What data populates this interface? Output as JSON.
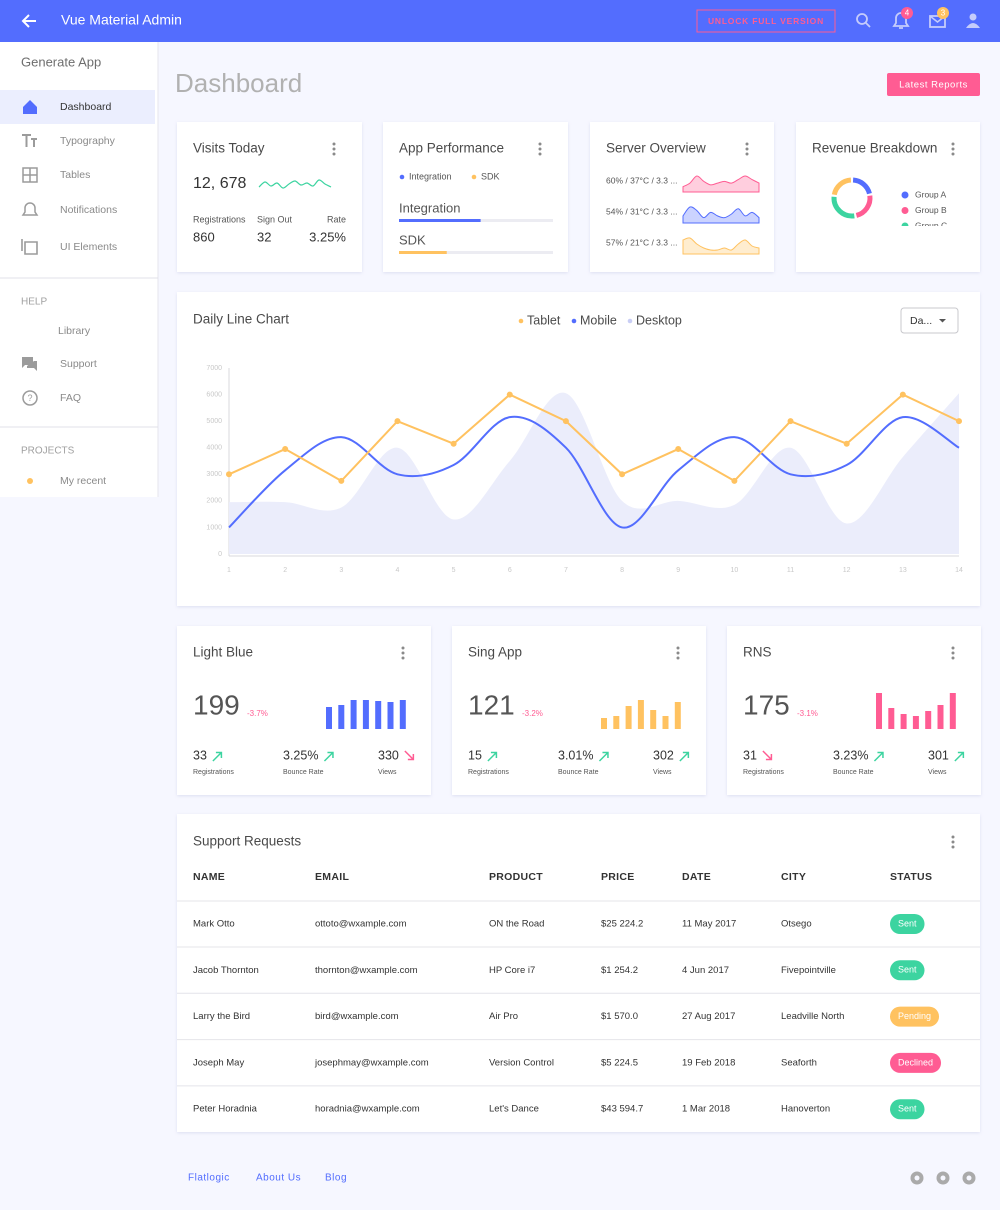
{
  "header": {
    "title": "Vue Material Admin",
    "unlock": "UNLOCK FULL VERSION",
    "notifications": 4,
    "messages": 3
  },
  "sidebar": {
    "title": "Generate App",
    "items": [
      "Dashboard",
      "Typography",
      "Tables",
      "Notifications",
      "UI Elements"
    ],
    "help_title": "HELP",
    "help_items": [
      "Library",
      "Support",
      "FAQ"
    ],
    "projects_title": "PROJECTS",
    "projects_items": [
      "My recent"
    ]
  },
  "page": {
    "title": "Dashboard",
    "button": "Latest Reports"
  },
  "visits": {
    "title": "Visits Today",
    "total": "12, 678",
    "color": "#3cd4a0",
    "trend": [
      3.6,
      4.1,
      3.7,
      4.0,
      3.5,
      3.9,
      4.2,
      3.8,
      4.0,
      3.7,
      4.3,
      3.9,
      3.6
    ],
    "stats": [
      {
        "label": "Registrations",
        "value": "860"
      },
      {
        "label": "Sign Out",
        "value": "32"
      },
      {
        "label": "Rate",
        "value": "3.25%"
      }
    ]
  },
  "app_performance": {
    "title": "App Performance",
    "xlim": [
      0,
      100
    ],
    "bars": [
      {
        "name": "Integration",
        "color": "#536dfe",
        "value": 53
      },
      {
        "name": "SDK",
        "color": "#ffc260",
        "value": 31
      }
    ]
  },
  "server_overview": {
    "title": "Server Overview",
    "rows": [
      {
        "label": "60% / 37°C / 3.3 ...",
        "color": "#ff5c93",
        "values": [
          3,
          5,
          9,
          6,
          4,
          5,
          6,
          5,
          7,
          9,
          7,
          5
        ]
      },
      {
        "label": "54% / 31°C / 3.3 ...",
        "color": "#536dfe",
        "values": [
          4,
          9,
          7,
          3,
          6,
          4,
          3,
          5,
          8,
          4,
          6,
          3
        ]
      },
      {
        "label": "57% / 21°C / 3.3 ...",
        "color": "#ffc260",
        "values": [
          7,
          8,
          5,
          3,
          2,
          2,
          3,
          2,
          5,
          7,
          4,
          3
        ]
      }
    ]
  },
  "revenue": {
    "title": "Revenue Breakdown",
    "names": [
      "Group A",
      "Group B",
      "Group C",
      null
    ],
    "values": [
      22,
      25,
      30,
      23
    ],
    "colors": [
      "#536dfe",
      "#ff5c93",
      "#3cd4a0",
      "#ffc260"
    ]
  },
  "chart_data": {
    "type": "line",
    "title": "Daily Line Chart",
    "dropdown": "Da...",
    "x": [
      1,
      2,
      3,
      4,
      5,
      6,
      7,
      8,
      9,
      10,
      11,
      12,
      13,
      14
    ],
    "xlim": [
      1,
      14
    ],
    "xticks": [
      1,
      2,
      3,
      4,
      5,
      6,
      7,
      8,
      9,
      10,
      11,
      12,
      13,
      14
    ],
    "ylim": [
      0,
      7000
    ],
    "yticks": [
      0,
      1000,
      2000,
      3000,
      4000,
      5000,
      6000,
      7000
    ],
    "series": [
      {
        "name": "Tablet",
        "color": "#ffc260",
        "values": [
          3000,
          3950,
          2750,
          5000,
          4150,
          6000,
          5000,
          3000,
          3950,
          2750,
          5000,
          4150,
          6000,
          5000
        ]
      },
      {
        "name": "Mobile",
        "color": "#536dfe",
        "values": [
          1000,
          3150,
          4400,
          3000,
          3350,
          5150,
          4000,
          1000,
          3150,
          4400,
          3000,
          3350,
          5150,
          4000
        ]
      },
      {
        "name": "Desktop",
        "color": "#ebedfb",
        "values": [
          1950,
          1950,
          1750,
          4000,
          1300,
          3500,
          6050,
          2000,
          2000,
          1850,
          4000,
          1150,
          3650,
          6050
        ]
      }
    ]
  },
  "stat_cards": [
    {
      "title": "Light Blue",
      "value": 199,
      "change": "-3.7%",
      "color": "#536dfe",
      "bars": [
        22,
        24,
        29,
        29,
        28,
        27,
        29
      ],
      "stats": [
        {
          "value": "33",
          "label": "Registrations",
          "trend": "up"
        },
        {
          "value": "3.25%",
          "label": "Bounce Rate",
          "trend": "up"
        },
        {
          "value": "330",
          "label": "Views",
          "trend": "down"
        }
      ]
    },
    {
      "title": "Sing App",
      "value": 121,
      "change": "-3.2%",
      "color": "#ffc260",
      "bars": [
        11,
        13,
        23,
        29,
        19,
        13,
        27
      ],
      "stats": [
        {
          "value": "15",
          "label": "Registrations",
          "trend": "up"
        },
        {
          "value": "3.01%",
          "label": "Bounce Rate",
          "trend": "up"
        },
        {
          "value": "302",
          "label": "Views",
          "trend": "up"
        }
      ]
    },
    {
      "title": "RNS",
      "value": 175,
      "change": "-3.1%",
      "color": "#ff5c93",
      "bars": [
        36,
        21,
        15,
        13,
        18,
        24,
        36
      ],
      "stats": [
        {
          "value": "31",
          "label": "Registrations",
          "trend": "down"
        },
        {
          "value": "3.23%",
          "label": "Bounce Rate",
          "trend": "up"
        },
        {
          "value": "301",
          "label": "Views",
          "trend": "up"
        }
      ]
    }
  ],
  "table": {
    "title": "Support Requests",
    "columns": [
      "NAME",
      "EMAIL",
      "PRODUCT",
      "PRICE",
      "DATE",
      "CITY",
      "STATUS"
    ],
    "rows": [
      [
        "Mark Otto",
        "ottoto@wxample.com",
        "ON the Road",
        "$25 224.2",
        "11 May 2017",
        "Otsego",
        "Sent"
      ],
      [
        "Jacob Thornton",
        "thornton@wxample.com",
        "HP Core i7",
        "$1 254.2",
        "4 Jun 2017",
        "Fivepointville",
        "Sent"
      ],
      [
        "Larry the Bird",
        "bird@wxample.com",
        "Air Pro",
        "$1 570.0",
        "27 Aug 2017",
        "Leadville North",
        "Pending"
      ],
      [
        "Joseph May",
        "josephmay@wxample.com",
        "Version Control",
        "$5 224.5",
        "19 Feb 2018",
        "Seaforth",
        "Declined"
      ],
      [
        "Peter Horadnia",
        "horadnia@wxample.com",
        "Let's Dance",
        "$43 594.7",
        "1 Mar 2018",
        "Hanoverton",
        "Sent"
      ]
    ],
    "status_colors": {
      "Sent": "#3cd4a0",
      "Pending": "#ffc260",
      "Declined": "#ff5c93"
    }
  },
  "footer": {
    "links": [
      "Flatlogic",
      "About Us",
      "Blog"
    ]
  }
}
